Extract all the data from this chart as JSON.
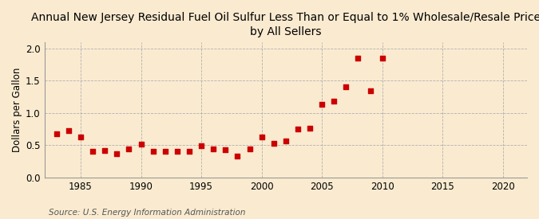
{
  "title_line1": "Annual New Jersey Residual Fuel Oil Sulfur Less Than or Equal to 1% Wholesale/Resale Price",
  "title_line2": "by All Sellers",
  "ylabel": "Dollars per Gallon",
  "source": "Source: U.S. Energy Information Administration",
  "background_color": "#faebd0",
  "marker_color": "#cc0000",
  "xlim": [
    1982,
    2022
  ],
  "ylim": [
    0.0,
    2.1
  ],
  "xticks": [
    1985,
    1990,
    1995,
    2000,
    2005,
    2010,
    2015,
    2020
  ],
  "yticks": [
    0.0,
    0.5,
    1.0,
    1.5,
    2.0
  ],
  "years": [
    1983,
    1984,
    1985,
    1986,
    1987,
    1988,
    1989,
    1990,
    1991,
    1992,
    1993,
    1994,
    1995,
    1996,
    1997,
    1998,
    1999,
    2000,
    2001,
    2002,
    2003,
    2004,
    2005,
    2006,
    2007,
    2008,
    2009,
    2010
  ],
  "values": [
    0.68,
    0.73,
    0.63,
    0.4,
    0.42,
    0.37,
    0.44,
    0.52,
    0.41,
    0.4,
    0.4,
    0.41,
    0.49,
    0.44,
    0.43,
    0.33,
    0.44,
    0.63,
    0.53,
    0.57,
    0.75,
    0.76,
    1.13,
    1.18,
    1.4,
    1.85,
    1.35,
    1.85
  ],
  "title_fontsize": 10,
  "tick_fontsize": 8.5,
  "ylabel_fontsize": 8.5,
  "source_fontsize": 7.5,
  "marker_size": 14
}
